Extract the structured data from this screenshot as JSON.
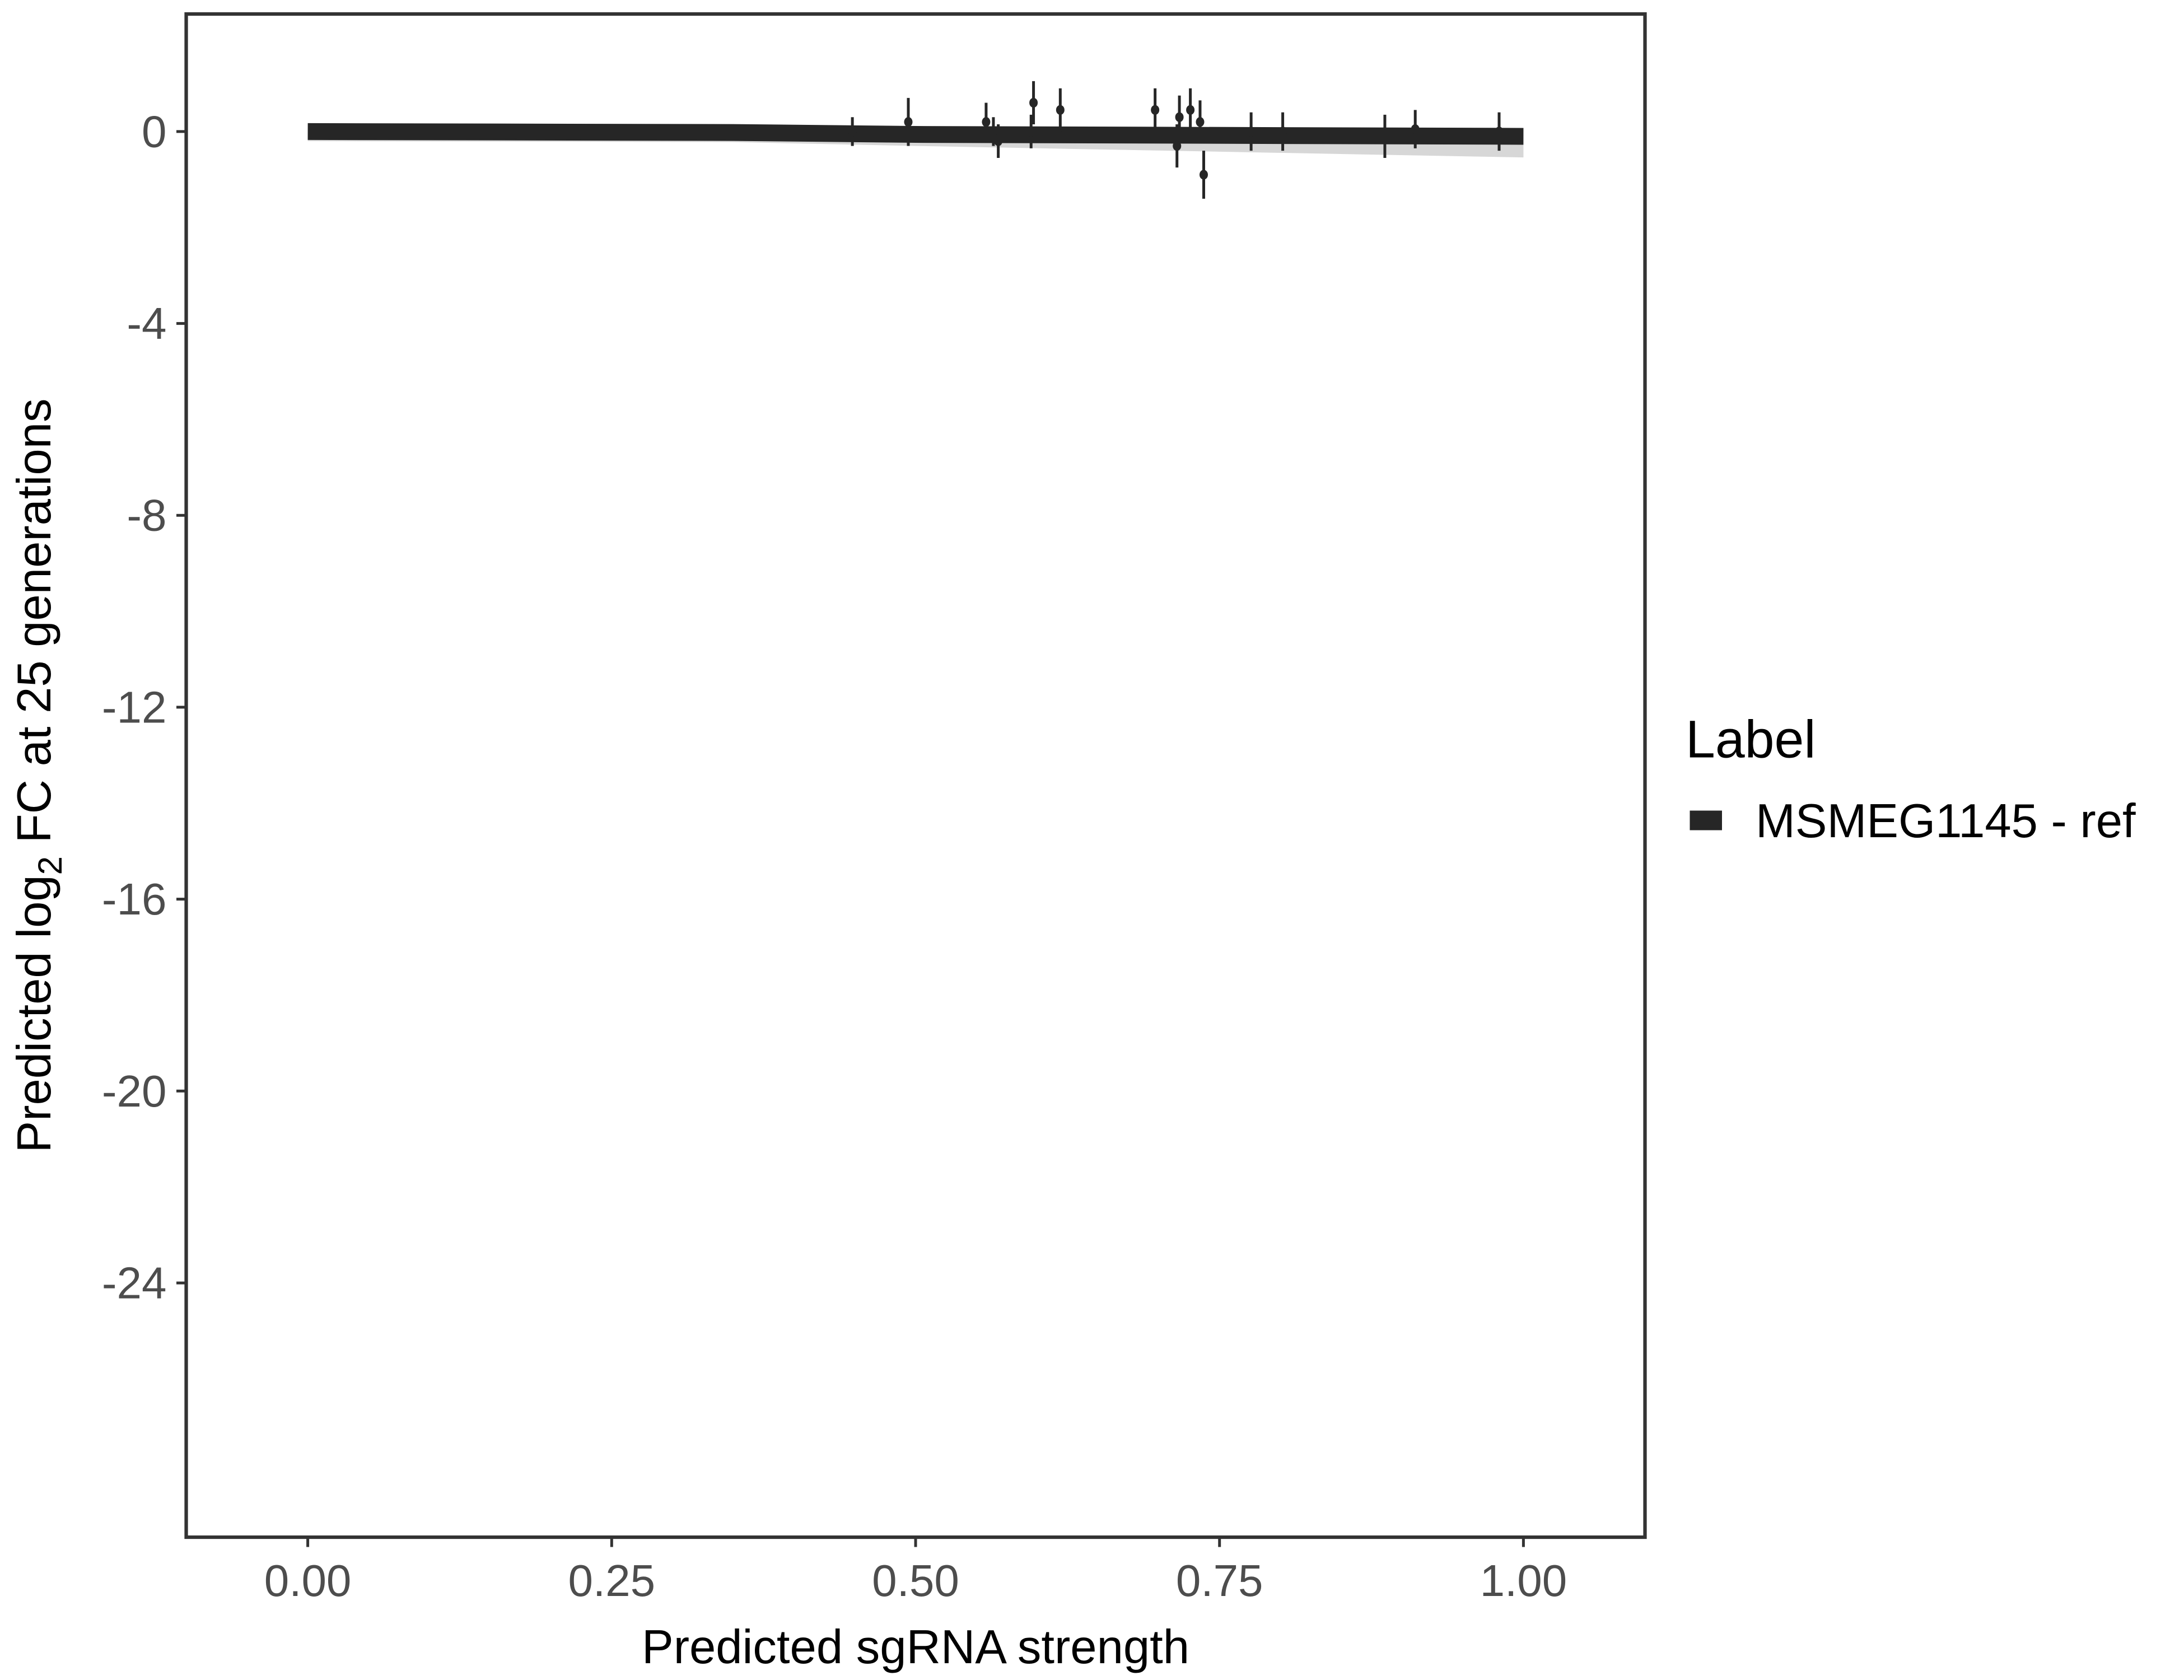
{
  "chart_data": {
    "type": "line",
    "title": "",
    "xlabel": "Predicted sgRNA strength",
    "ylabel_parts": {
      "pre": "Predicted  log",
      "sub": "2",
      "post": " FC at 25 generations"
    },
    "xlim": [
      -0.1,
      1.1
    ],
    "ylim": [
      -29.3,
      2.45
    ],
    "x_ticks": [
      0,
      0.25,
      0.5,
      0.75,
      1
    ],
    "x_tick_labels": [
      "0.00",
      "0.25",
      "0.50",
      "0.75",
      "1.00"
    ],
    "y_ticks": [
      0,
      -4,
      -8,
      -12,
      -16,
      -20,
      -24
    ],
    "y_tick_labels": [
      "0",
      "-4",
      "-8",
      "-12",
      "-16",
      "-20",
      "-24"
    ],
    "grid": false,
    "legend": {
      "title": "Label",
      "placement": "right",
      "entries": [
        "MSMEG1145 - ref"
      ]
    },
    "colors": {
      "series": "#262626",
      "ribbon": "#bdbdbd",
      "axis": "#333333",
      "tick_text": "#4d4d4d"
    },
    "series": [
      {
        "name": "MSMEG1145 - ref",
        "fit_line": {
          "x": [
            0,
            0.35,
            0.5,
            1
          ],
          "y": [
            0,
            -0.02,
            -0.06,
            -0.1
          ]
        },
        "points": [
          {
            "x": 0.448,
            "y": 0.0,
            "err": 0.3
          },
          {
            "x": 0.494,
            "y": 0.2,
            "err": 0.5
          },
          {
            "x": 0.558,
            "y": 0.2,
            "err": 0.4
          },
          {
            "x": 0.564,
            "y": 0.0,
            "err": 0.3
          },
          {
            "x": 0.568,
            "y": -0.2,
            "err": 0.35
          },
          {
            "x": 0.595,
            "y": 0.0,
            "err": 0.35
          },
          {
            "x": 0.597,
            "y": 0.6,
            "err": 0.45
          },
          {
            "x": 0.619,
            "y": 0.45,
            "err": 0.45
          },
          {
            "x": 0.697,
            "y": 0.45,
            "err": 0.45
          },
          {
            "x": 0.715,
            "y": -0.3,
            "err": 0.45
          },
          {
            "x": 0.717,
            "y": 0.3,
            "err": 0.45
          },
          {
            "x": 0.726,
            "y": 0.45,
            "err": 0.45
          },
          {
            "x": 0.734,
            "y": 0.2,
            "err": 0.45
          },
          {
            "x": 0.737,
            "y": -0.9,
            "err": 0.5
          },
          {
            "x": 0.776,
            "y": 0.0,
            "err": 0.4
          },
          {
            "x": 0.802,
            "y": 0.0,
            "err": 0.4
          },
          {
            "x": 0.886,
            "y": -0.1,
            "err": 0.45
          },
          {
            "x": 0.911,
            "y": 0.05,
            "err": 0.4
          },
          {
            "x": 0.98,
            "y": 0.0,
            "err": 0.4
          }
        ]
      }
    ]
  }
}
